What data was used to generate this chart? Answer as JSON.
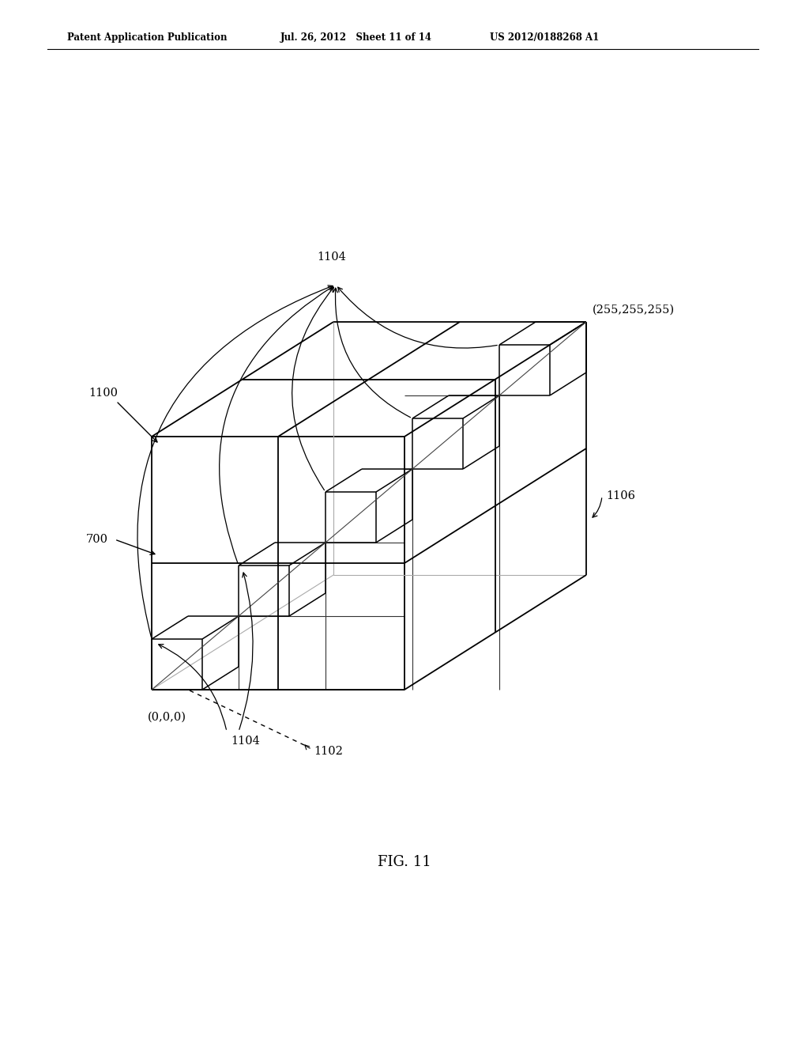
{
  "bg_color": "#ffffff",
  "line_color": "#000000",
  "header_left": "Patent Application Publication",
  "header_mid": "Jul. 26, 2012   Sheet 11 of 14",
  "header_right": "US 2012/0188268 A1",
  "fig_label": "FIG. 11",
  "label_1100": "1100",
  "label_700": "700",
  "label_1104_top": "1104",
  "label_1104_bot": "1104",
  "label_1102": "1102",
  "label_1106": "1106",
  "label_origin": "(0,0,0)",
  "label_corner": "(255,255,255)"
}
